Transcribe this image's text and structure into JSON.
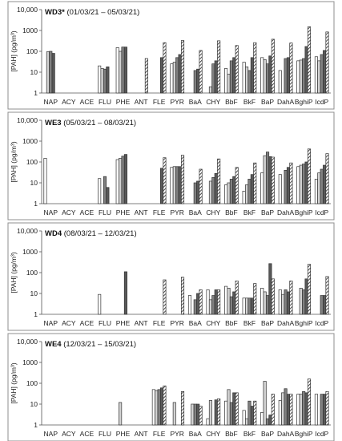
{
  "colors": {
    "frame": "#8f8f8f",
    "bar_outline": "#333333",
    "series_fill": [
      "#ffffff",
      "#d3d3d3",
      "#808080",
      "#595959",
      "hatch"
    ]
  },
  "chart_data": [
    {
      "type": "bar",
      "title": "WD3*",
      "subtitle": "(01/03/21 – 05/03/21)",
      "ylabel": "[PAH] (pg/m³)",
      "yscale": "log",
      "ylim": [
        1,
        10000
      ],
      "yticks": [
        "1",
        "10",
        "100",
        "1000",
        "10,000"
      ],
      "categories": [
        "NAP",
        "ACY",
        "ACE",
        "FLU",
        "PHE",
        "ANT",
        "FLE",
        "PYR",
        "BaA",
        "CHY",
        "BbF",
        "BkF",
        "BaP",
        "DahA",
        "BghiP",
        "IcdP"
      ],
      "series": [
        {
          "values": [
            null,
            null,
            null,
            20,
            150,
            null,
            null,
            25,
            null,
            null,
            15,
            30,
            50,
            12,
            35,
            55
          ]
        },
        {
          "values": [
            95,
            null,
            null,
            15,
            100,
            null,
            null,
            30,
            null,
            2,
            8,
            18,
            40,
            null,
            38,
            35
          ]
        },
        {
          "values": [
            100,
            null,
            null,
            14,
            160,
            null,
            null,
            50,
            12,
            25,
            35,
            12,
            25,
            45,
            45,
            70
          ]
        },
        {
          "values": [
            80,
            null,
            null,
            18,
            160,
            null,
            50,
            70,
            14,
            35,
            50,
            50,
            60,
            50,
            170,
            110
          ]
        },
        {
          "values": [
            null,
            null,
            null,
            null,
            null,
            45,
            260,
            330,
            110,
            320,
            190,
            260,
            380,
            250,
            1500,
            850
          ]
        }
      ]
    },
    {
      "type": "bar",
      "title": "WE3",
      "subtitle": "(05/03/21 – 08/03/21)",
      "ylabel": "[PAH] (pg/m³)",
      "yscale": "log",
      "ylim": [
        1,
        10000
      ],
      "yticks": [
        "1",
        "10",
        "100",
        "1000",
        "10,000"
      ],
      "categories": [
        "NAP",
        "ACY",
        "ACE",
        "FLU",
        "PHE",
        "ANT",
        "FLE",
        "PYR",
        "BaA",
        "CHY",
        "BbF",
        "BkF",
        "BaP",
        "DahA",
        "BghiP",
        "IcdP"
      ],
      "series": [
        {
          "values": [
            150,
            null,
            null,
            16,
            130,
            null,
            null,
            55,
            null,
            null,
            8,
            4,
            30,
            25,
            60,
            15
          ]
        },
        {
          "values": [
            null,
            null,
            null,
            null,
            150,
            null,
            null,
            60,
            null,
            12,
            10,
            8,
            200,
            null,
            70,
            30
          ]
        },
        {
          "values": [
            null,
            null,
            null,
            20,
            190,
            null,
            null,
            60,
            10,
            18,
            15,
            15,
            300,
            40,
            80,
            45
          ]
        },
        {
          "values": [
            null,
            null,
            null,
            6,
            230,
            null,
            50,
            60,
            12,
            28,
            20,
            25,
            180,
            55,
            100,
            70
          ]
        },
        {
          "values": [
            null,
            null,
            null,
            null,
            null,
            null,
            160,
            210,
            45,
            140,
            55,
            90,
            170,
            90,
            420,
            250
          ]
        }
      ]
    },
    {
      "type": "bar",
      "title": "WD4",
      "subtitle": "(08/03/21 – 12/03/21)",
      "ylabel": "[PAH] (pg/m³)",
      "yscale": "log",
      "ylim": [
        1,
        10000
      ],
      "yticks": [
        "1",
        "10",
        "100",
        "1000",
        "10,000"
      ],
      "categories": [
        "NAP",
        "ACY",
        "ACE",
        "FLU",
        "PHE",
        "ANT",
        "FLE",
        "PYR",
        "BaA",
        "CHY",
        "BbF",
        "BkF",
        "BaP",
        "DahA",
        "BghiP",
        "IcdP"
      ],
      "series": [
        {
          "values": [
            null,
            null,
            null,
            9,
            null,
            null,
            null,
            null,
            8,
            15,
            22,
            6,
            18,
            15,
            null,
            null
          ]
        },
        {
          "values": [
            null,
            null,
            null,
            null,
            null,
            null,
            null,
            null,
            null,
            5,
            18,
            6,
            12,
            9,
            18,
            null
          ]
        },
        {
          "values": [
            null,
            null,
            null,
            null,
            null,
            null,
            null,
            null,
            5,
            8,
            7,
            6,
            8,
            15,
            15,
            8
          ]
        },
        {
          "values": [
            null,
            null,
            null,
            null,
            110,
            null,
            null,
            null,
            10,
            15,
            12,
            6,
            270,
            12,
            50,
            8
          ]
        },
        {
          "values": [
            null,
            null,
            null,
            null,
            null,
            null,
            45,
            60,
            15,
            15,
            40,
            30,
            50,
            40,
            250,
            65
          ]
        }
      ]
    },
    {
      "type": "bar",
      "title": "WE4",
      "subtitle": "(12/03/21 – 15/03/21)",
      "ylabel": "[PAH] (pg/m³)",
      "yscale": "log",
      "ylim": [
        1,
        10000
      ],
      "yticks": [
        "1",
        "10",
        "100",
        "1000",
        "10,000"
      ],
      "categories": [
        "NAP",
        "ACY",
        "ACE",
        "FLU",
        "PHE",
        "ANT",
        "FLE",
        "PYR",
        "BaA",
        "CHY",
        "BbF",
        "BkF",
        "BaP",
        "DahA",
        "BghiP",
        "IcdP"
      ],
      "series": [
        {
          "values": [
            null,
            null,
            null,
            null,
            null,
            null,
            50,
            null,
            null,
            2,
            14,
            5,
            4,
            15,
            30,
            30
          ]
        },
        {
          "values": [
            null,
            null,
            null,
            null,
            12,
            null,
            45,
            12,
            10,
            15,
            50,
            2,
            125,
            35,
            30,
            null
          ]
        },
        {
          "values": [
            null,
            null,
            null,
            null,
            null,
            null,
            50,
            null,
            10,
            null,
            12,
            14,
            2,
            55,
            40,
            30
          ]
        },
        {
          "values": [
            null,
            null,
            null,
            null,
            null,
            null,
            60,
            null,
            10,
            16,
            35,
            8,
            3,
            30,
            35,
            30
          ]
        },
        {
          "values": [
            null,
            null,
            null,
            null,
            null,
            null,
            75,
            40,
            8,
            18,
            35,
            14,
            30,
            30,
            160,
            40
          ]
        }
      ]
    }
  ]
}
